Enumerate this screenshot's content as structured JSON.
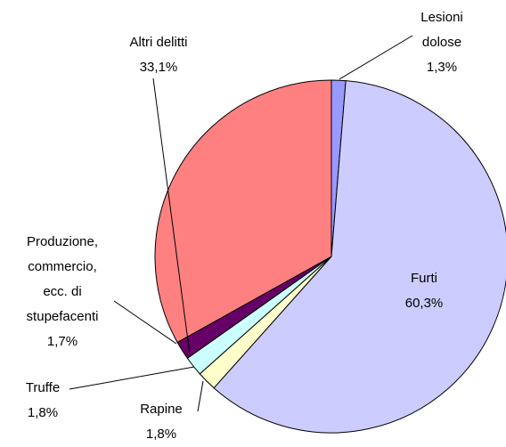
{
  "chart_data": {
    "type": "pie",
    "categories": [
      "Lesioni\ndolose",
      "Furti",
      "Rapine",
      "Truffe",
      "Produzione,\ncommercio,\necc. di\nstupefacenti",
      "Altri delitti"
    ],
    "values": [
      1.3,
      60.3,
      1.8,
      1.8,
      1.7,
      33.1
    ],
    "value_labels": [
      "1,3%",
      "60,3%",
      "1,8%",
      "1,8%",
      "1,7%",
      "33,1%"
    ],
    "colors": [
      "#9999ff",
      "#ccccff",
      "#ffffcc",
      "#ccffff",
      "#660066",
      "#ff8080"
    ]
  }
}
